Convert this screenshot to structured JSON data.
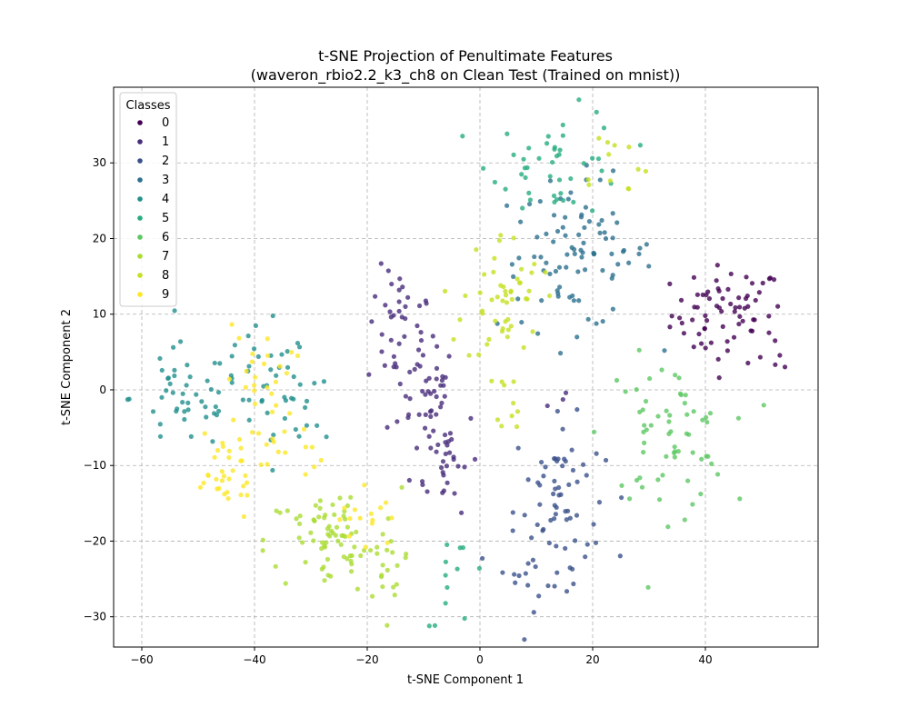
{
  "chart_data": {
    "type": "scatter",
    "title": "t-SNE Projection of Penultimate Features",
    "subtitle": "(waveron_rbio2.2_k3_ch8 on Clean Test (Trained on mnist))",
    "xlabel": "t-SNE Component 1",
    "ylabel": "t-SNE Component 2",
    "xlim": [
      -65,
      60
    ],
    "ylim": [
      -34,
      40
    ],
    "xticks": [
      -60,
      -40,
      -20,
      0,
      20,
      40
    ],
    "yticks": [
      -30,
      -20,
      -10,
      0,
      10,
      20,
      30
    ],
    "grid": true,
    "legend": {
      "title": "Classes",
      "position": "top-left"
    },
    "series": [
      {
        "name": "0",
        "color": "#440154",
        "clusters": [
          {
            "cx": 44,
            "cy": 10,
            "sx": 5.0,
            "sy": 3.2,
            "n": 70
          },
          {
            "cx": 53,
            "cy": 4,
            "sx": 1.0,
            "sy": 1.0,
            "n": 4
          }
        ]
      },
      {
        "name": "1",
        "color": "#472c7a",
        "clusters": [
          {
            "cx": -14,
            "cy": 8,
            "sx": 3.0,
            "sy": 4.0,
            "n": 40
          },
          {
            "cx": -10,
            "cy": 0,
            "sx": 3.0,
            "sy": 3.0,
            "n": 35
          },
          {
            "cx": -6,
            "cy": -9,
            "sx": 3.0,
            "sy": 3.5,
            "n": 35
          },
          {
            "cx": 13,
            "cy": 0,
            "sx": 1.0,
            "sy": 1.0,
            "n": 3
          }
        ]
      },
      {
        "name": "2",
        "color": "#3b518b",
        "clusters": [
          {
            "cx": 14,
            "cy": -13,
            "sx": 4.0,
            "sy": 4.5,
            "n": 50
          },
          {
            "cx": 12,
            "cy": -23,
            "sx": 4.0,
            "sy": 3.0,
            "n": 30
          }
        ]
      },
      {
        "name": "3",
        "color": "#2c718e",
        "clusters": [
          {
            "cx": 17,
            "cy": 18,
            "sx": 7.0,
            "sy": 5.0,
            "n": 90
          }
        ]
      },
      {
        "name": "4",
        "color": "#21908d",
        "clusters": [
          {
            "cx": -52,
            "cy": -1,
            "sx": 5.0,
            "sy": 3.5,
            "n": 45
          },
          {
            "cx": -38,
            "cy": 0,
            "sx": 4.0,
            "sy": 4.0,
            "n": 35
          },
          {
            "cx": -30,
            "cy": -3,
            "sx": 3.0,
            "sy": 3.0,
            "n": 12
          }
        ]
      },
      {
        "name": "5",
        "color": "#27ad81",
        "clusters": [
          {
            "cx": 14,
            "cy": 30,
            "sx": 6.0,
            "sy": 3.5,
            "n": 45
          },
          {
            "cx": -4,
            "cy": -25,
            "sx": 3.0,
            "sy": 3.0,
            "n": 12
          }
        ]
      },
      {
        "name": "6",
        "color": "#5cc863",
        "clusters": [
          {
            "cx": 33,
            "cy": -6,
            "sx": 5.5,
            "sy": 5.0,
            "n": 65
          }
        ]
      },
      {
        "name": "7",
        "color": "#aadc32",
        "clusters": [
          {
            "cx": -26,
            "cy": -20,
            "sx": 6.0,
            "sy": 3.5,
            "n": 80
          },
          {
            "cx": -16,
            "cy": -24,
            "sx": 2.5,
            "sy": 2.5,
            "n": 12
          }
        ]
      },
      {
        "name": "8",
        "color": "#c5e021",
        "clusters": [
          {
            "cx": 4,
            "cy": 12,
            "sx": 3.5,
            "sy": 4.5,
            "n": 50
          },
          {
            "cx": 6,
            "cy": -1,
            "sx": 1.5,
            "sy": 2.0,
            "n": 10
          },
          {
            "cx": 23,
            "cy": 30,
            "sx": 3.5,
            "sy": 2.5,
            "n": 12
          }
        ]
      },
      {
        "name": "9",
        "color": "#fde725",
        "clusters": [
          {
            "cx": -46,
            "cy": -11,
            "sx": 3.5,
            "sy": 3.0,
            "n": 35
          },
          {
            "cx": -39,
            "cy": 0,
            "sx": 3.0,
            "sy": 4.5,
            "n": 30
          },
          {
            "cx": -20,
            "cy": -17,
            "sx": 2.5,
            "sy": 2.5,
            "n": 15
          },
          {
            "cx": -33,
            "cy": -8,
            "sx": 2.5,
            "sy": 2.0,
            "n": 8
          }
        ]
      }
    ]
  }
}
